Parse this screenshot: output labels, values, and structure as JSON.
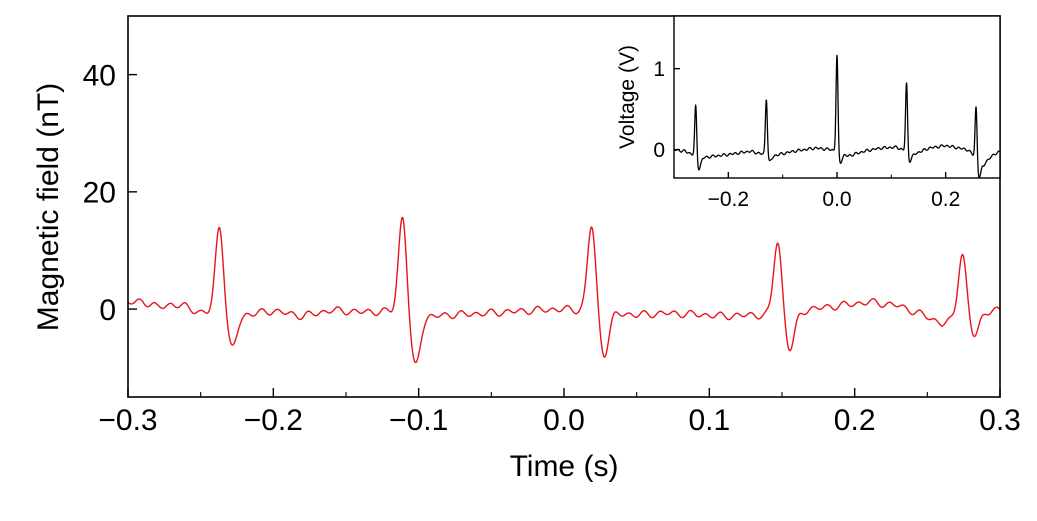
{
  "chart_data": [
    {
      "type": "line",
      "role": "main",
      "xlabel": "Time (s)",
      "ylabel": "Magnetic field (nT)",
      "xlim": [
        -0.3,
        0.3
      ],
      "ylim": [
        -15,
        50
      ],
      "xticks": [
        -0.3,
        -0.2,
        -0.1,
        0.0,
        0.1,
        0.2,
        0.3
      ],
      "xtick_labels": [
        "−0.3",
        "−0.2",
        "−0.1",
        "0.0",
        "0.1",
        "0.2",
        "0.3"
      ],
      "yticks": [
        0,
        20,
        40
      ],
      "ytick_labels": [
        "0",
        "20",
        "40"
      ],
      "grid": false,
      "series": [
        {
          "color": "#e8141a",
          "baseline": [
            [
              -0.3,
              1.0
            ],
            [
              -0.29,
              1.4
            ],
            [
              -0.28,
              0.3
            ],
            [
              -0.27,
              0.8
            ],
            [
              -0.26,
              0.4
            ],
            [
              -0.25,
              -0.6
            ],
            [
              -0.22,
              -1.0
            ],
            [
              -0.2,
              -0.3
            ],
            [
              -0.18,
              -1.2
            ],
            [
              -0.16,
              -0.2
            ],
            [
              -0.14,
              -0.5
            ],
            [
              -0.12,
              -0.4
            ],
            [
              -0.1,
              -1.5
            ],
            [
              -0.08,
              -1.0
            ],
            [
              -0.06,
              -0.8
            ],
            [
              -0.04,
              -0.5
            ],
            [
              -0.02,
              -0.2
            ],
            [
              0.0,
              0.0
            ],
            [
              0.03,
              -0.6
            ],
            [
              0.05,
              -1.0
            ],
            [
              0.07,
              -0.7
            ],
            [
              0.09,
              -0.9
            ],
            [
              0.11,
              -1.2
            ],
            [
              0.13,
              -1.0
            ],
            [
              0.15,
              -1.2
            ],
            [
              0.17,
              0.0
            ],
            [
              0.19,
              0.6
            ],
            [
              0.21,
              1.2
            ],
            [
              0.23,
              0.6
            ],
            [
              0.25,
              -1.3
            ],
            [
              0.26,
              -2.5
            ],
            [
              0.27,
              -1.8
            ],
            [
              0.28,
              -1.0
            ],
            [
              0.29,
              -0.3
            ],
            [
              0.3,
              -0.3
            ]
          ],
          "beats": [
            {
              "t": -0.237,
              "peak": 15.0,
              "trough": -6.0
            },
            {
              "t": -0.111,
              "peak": 16.8,
              "trough": -8.5
            },
            {
              "t": 0.019,
              "peak": 14.8,
              "trough": -7.2
            },
            {
              "t": 0.147,
              "peak": 12.8,
              "trough": -6.0
            },
            {
              "t": 0.274,
              "peak": 11.0,
              "trough": -3.8
            }
          ]
        }
      ]
    },
    {
      "type": "line",
      "role": "inset",
      "ylabel": "Voltage (V)",
      "xlim": [
        -0.3,
        0.3
      ],
      "ylim": [
        -0.35,
        1.65
      ],
      "xticks": [
        -0.2,
        0.0,
        0.2
      ],
      "xtick_labels": [
        "−0.2",
        "0.0",
        "0.2"
      ],
      "yticks": [
        0,
        1
      ],
      "ytick_labels": [
        "0",
        "1"
      ],
      "grid": false,
      "series": [
        {
          "color": "#000000",
          "baseline": [
            [
              -0.3,
              0.0
            ],
            [
              -0.28,
              -0.02
            ],
            [
              -0.25,
              -0.1
            ],
            [
              -0.2,
              -0.06
            ],
            [
              -0.16,
              -0.02
            ],
            [
              -0.14,
              -0.05
            ],
            [
              -0.12,
              -0.08
            ],
            [
              -0.08,
              -0.02
            ],
            [
              -0.04,
              0.02
            ],
            [
              -0.01,
              0.0
            ],
            [
              0.02,
              -0.08
            ],
            [
              0.05,
              -0.02
            ],
            [
              0.08,
              0.02
            ],
            [
              0.11,
              0.03
            ],
            [
              0.14,
              -0.06
            ],
            [
              0.17,
              0.02
            ],
            [
              0.2,
              0.05
            ],
            [
              0.24,
              0.0
            ],
            [
              0.27,
              -0.18
            ],
            [
              0.29,
              -0.05
            ],
            [
              0.3,
              -0.03
            ]
          ],
          "beats": [
            {
              "t": -0.26,
              "peak": 0.65,
              "trough": -0.15
            },
            {
              "t": -0.13,
              "peak": 0.72,
              "trough": -0.08
            },
            {
              "t": 0.0,
              "peak": 1.22,
              "trough": -0.12
            },
            {
              "t": 0.128,
              "peak": 0.87,
              "trough": -0.1
            },
            {
              "t": 0.256,
              "peak": 0.68,
              "trough": -0.22
            }
          ]
        }
      ]
    }
  ]
}
